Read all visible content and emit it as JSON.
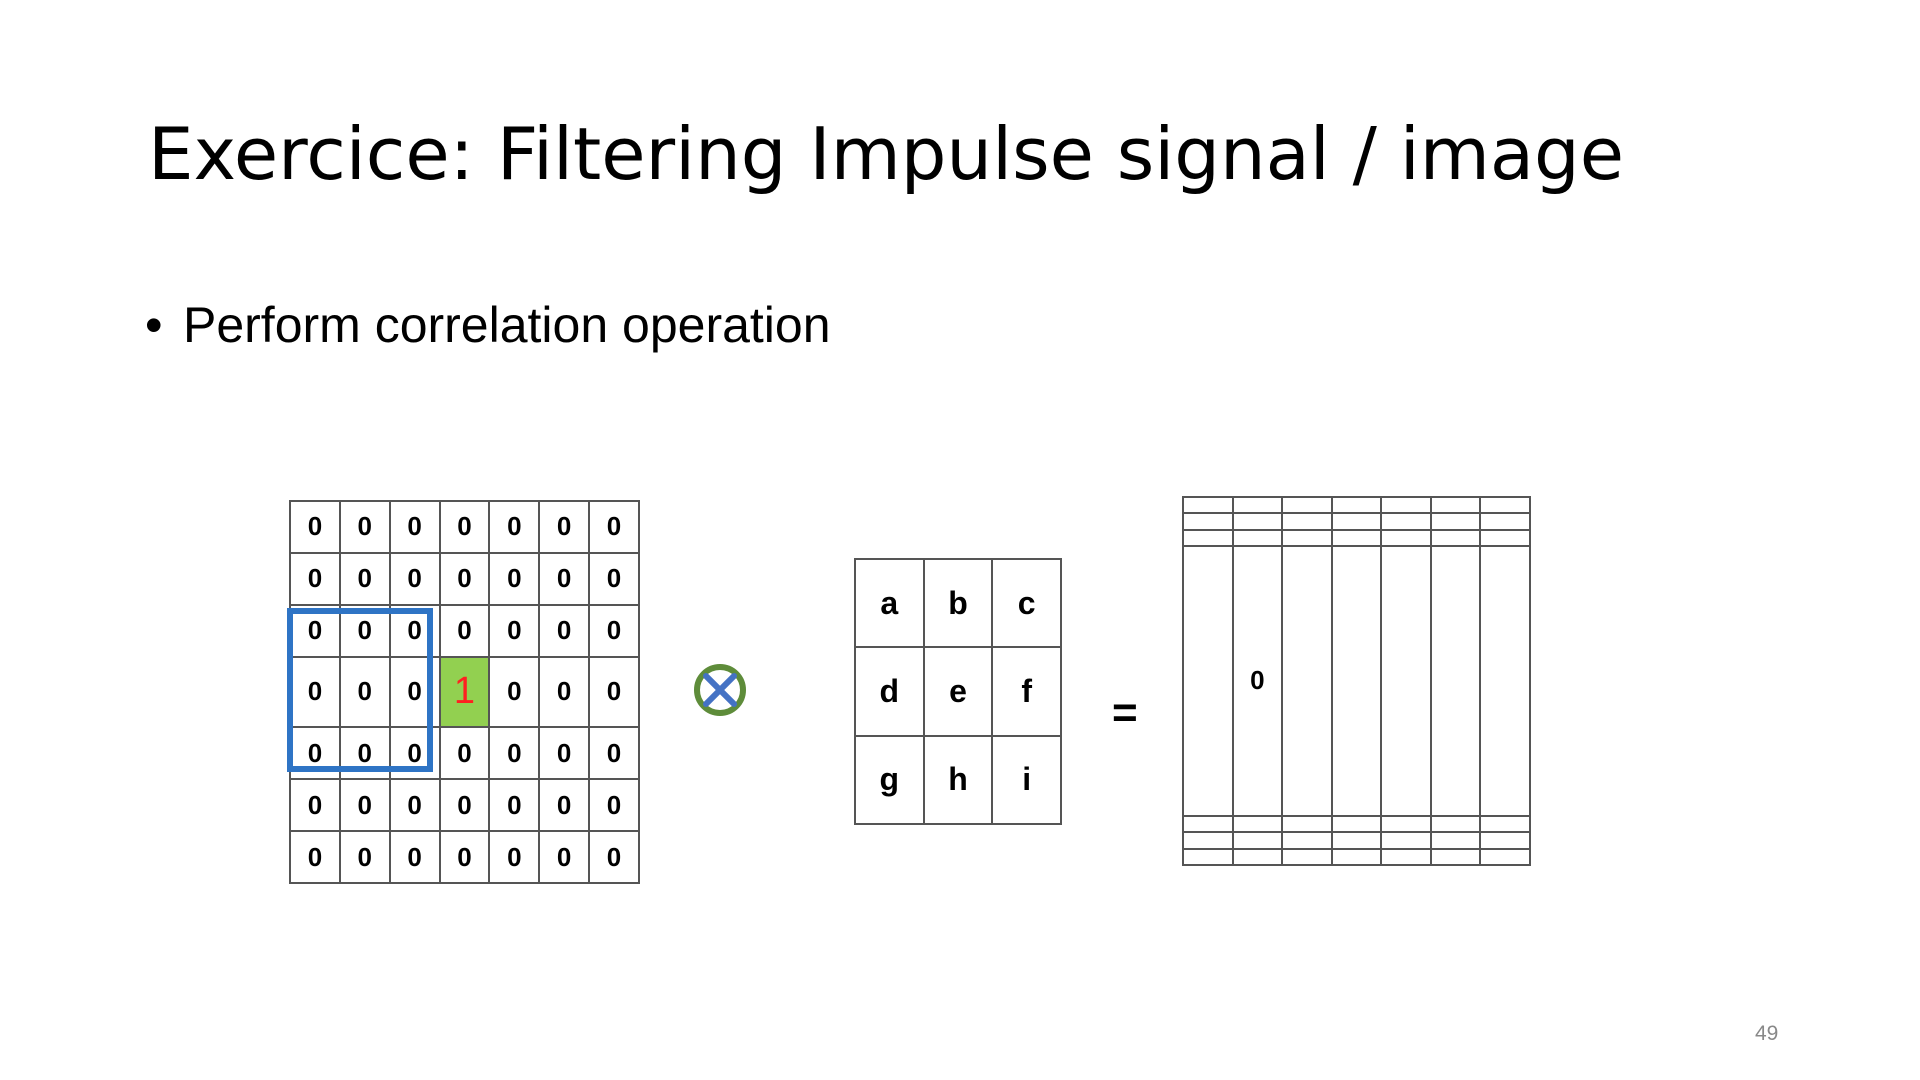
{
  "slide": {
    "title": "Exercice: Filtering Impulse signal / image",
    "bullet_symbol": "•",
    "bullet": "Perform correlation operation",
    "page_number": "49"
  },
  "input_image": {
    "rows": [
      [
        "0",
        "0",
        "0",
        "0",
        "0",
        "0",
        "0"
      ],
      [
        "0",
        "0",
        "0",
        "0",
        "0",
        "0",
        "0"
      ],
      [
        "0",
        "0",
        "0",
        "0",
        "0",
        "0",
        "0"
      ],
      [
        "0",
        "0",
        "0",
        "1",
        "0",
        "0",
        "0"
      ],
      [
        "0",
        "0",
        "0",
        "0",
        "0",
        "0",
        "0"
      ],
      [
        "0",
        "0",
        "0",
        "0",
        "0",
        "0",
        "0"
      ],
      [
        "0",
        "0",
        "0",
        "0",
        "0",
        "0",
        "0"
      ]
    ],
    "impulse_cell": {
      "row": 3,
      "col": 3
    },
    "highlight_color": "#92d050",
    "impulse_text_color": "#ff2020",
    "window_color": "#2e74c5"
  },
  "operator": {
    "icon": "circled-times-icon",
    "ring_color": "#5e8c3a",
    "cross_color": "#4472c4"
  },
  "kernel": {
    "rows": [
      [
        "a",
        "b",
        "c"
      ],
      [
        "d",
        "e",
        "f"
      ],
      [
        "g",
        "h",
        "i"
      ]
    ]
  },
  "equals": "=",
  "output_image": {
    "rows": [
      [
        "",
        "",
        "",
        "",
        "",
        "",
        ""
      ],
      [
        "",
        "",
        "",
        "",
        "",
        "",
        ""
      ],
      [
        "",
        "",
        "",
        "",
        "",
        "",
        ""
      ],
      [
        "",
        "0",
        "",
        "",
        "",
        "",
        ""
      ],
      [
        "",
        "",
        "",
        "",
        "",
        "",
        ""
      ],
      [
        "",
        "",
        "",
        "",
        "",
        "",
        ""
      ],
      [
        "",
        "",
        "",
        "",
        "",
        "",
        ""
      ]
    ]
  }
}
